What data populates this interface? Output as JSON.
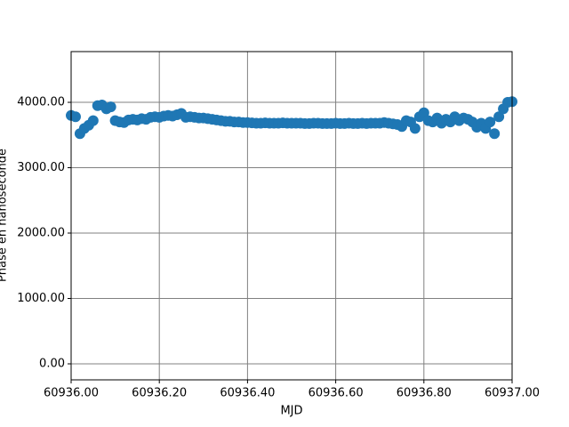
{
  "chart_data": {
    "type": "scatter",
    "x_label": "MJD",
    "y_label": "Phase en nanoseconde",
    "color": "#1f77b4",
    "grid": true,
    "xlim": [
      60936.0,
      60937.0
    ],
    "ylim": [
      -245,
      4776
    ],
    "xticks": [
      {
        "value": 60936.0,
        "label": "60936.00"
      },
      {
        "value": 60936.2,
        "label": "60936.20"
      },
      {
        "value": 60936.4,
        "label": "60936.40"
      },
      {
        "value": 60936.6,
        "label": "60936.60"
      },
      {
        "value": 60936.8,
        "label": "60936.80"
      },
      {
        "value": 60937.0,
        "label": "60937.00"
      }
    ],
    "yticks": [
      {
        "value": 0,
        "label": "0.00"
      },
      {
        "value": 1000,
        "label": "1000.00"
      },
      {
        "value": 2000,
        "label": "2000.00"
      },
      {
        "value": 3000,
        "label": "3000.00"
      },
      {
        "value": 4000,
        "label": "4000.00"
      }
    ],
    "x": [
      60936,
      60936.01,
      60936.02,
      60936.03,
      60936.04,
      60936.05,
      60936.06,
      60936.07,
      60936.08,
      60936.09,
      60936.1,
      60936.11,
      60936.12,
      60936.13,
      60936.14,
      60936.15,
      60936.16,
      60936.17,
      60936.18,
      60936.19,
      60936.2,
      60936.21,
      60936.22,
      60936.23,
      60936.24,
      60936.25,
      60936.26,
      60936.27,
      60936.28,
      60936.29,
      60936.3,
      60936.31,
      60936.32,
      60936.33,
      60936.34,
      60936.35,
      60936.36,
      60936.37,
      60936.38,
      60936.39,
      60936.4,
      60936.41,
      60936.42,
      60936.43,
      60936.44,
      60936.45,
      60936.46,
      60936.47,
      60936.48,
      60936.49,
      60936.5,
      60936.51,
      60936.52,
      60936.53,
      60936.54,
      60936.55,
      60936.56,
      60936.57,
      60936.58,
      60936.59,
      60936.6,
      60936.61,
      60936.62,
      60936.63,
      60936.64,
      60936.65,
      60936.66,
      60936.67,
      60936.68,
      60936.69,
      60936.7,
      60936.71,
      60936.72,
      60936.73,
      60936.74,
      60936.75,
      60936.76,
      60936.77,
      60936.78,
      60936.79,
      60936.8,
      60936.81,
      60936.82,
      60936.83,
      60936.84,
      60936.85,
      60936.86,
      60936.87,
      60936.88,
      60936.89,
      60936.9,
      60936.91,
      60936.92,
      60936.93,
      60936.94,
      60936.95,
      60936.96,
      60936.97,
      60936.98,
      60936.99,
      60937
    ],
    "values": [
      3800,
      3780,
      3520,
      3600,
      3650,
      3720,
      3950,
      3960,
      3900,
      3930,
      3720,
      3700,
      3690,
      3730,
      3740,
      3730,
      3750,
      3740,
      3770,
      3780,
      3770,
      3790,
      3800,
      3790,
      3810,
      3830,
      3770,
      3780,
      3770,
      3760,
      3760,
      3750,
      3740,
      3730,
      3720,
      3710,
      3710,
      3700,
      3700,
      3690,
      3690,
      3685,
      3680,
      3680,
      3685,
      3680,
      3680,
      3680,
      3685,
      3680,
      3680,
      3680,
      3680,
      3675,
      3675,
      3680,
      3680,
      3675,
      3675,
      3675,
      3680,
      3675,
      3675,
      3680,
      3675,
      3675,
      3680,
      3675,
      3680,
      3680,
      3680,
      3690,
      3680,
      3670,
      3660,
      3630,
      3720,
      3700,
      3600,
      3780,
      3840,
      3720,
      3700,
      3760,
      3680,
      3740,
      3700,
      3780,
      3720,
      3760,
      3740,
      3700,
      3620,
      3680,
      3600,
      3700,
      3520,
      3780,
      3900,
      4000,
      4010
    ]
  }
}
